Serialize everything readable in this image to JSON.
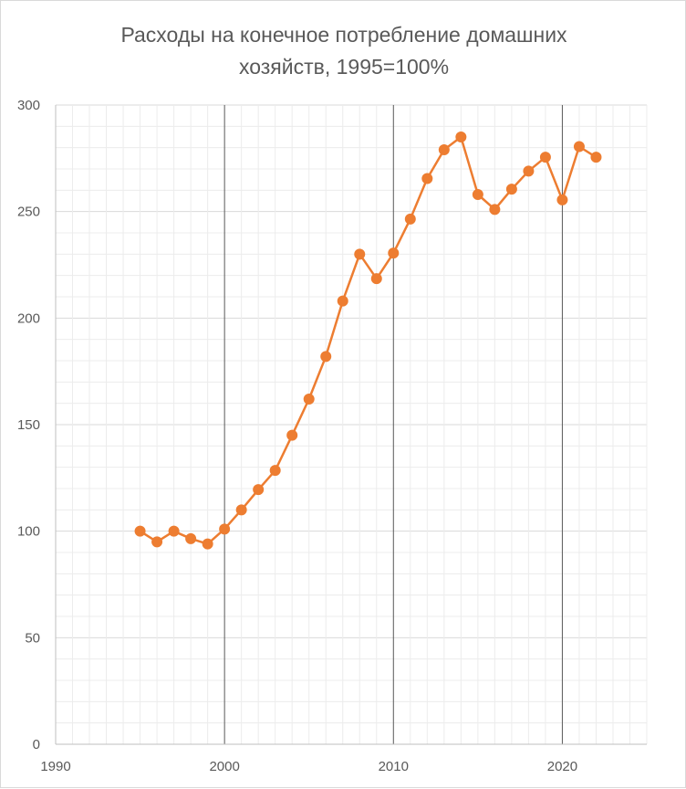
{
  "chart_data": {
    "type": "line",
    "title_lines": [
      "Расходы на конечное потребление домашних",
      "хозяйств, 1995=100%"
    ],
    "xlabel": "",
    "ylabel": "",
    "xlim": [
      1990,
      2025
    ],
    "ylim": [
      0,
      300
    ],
    "x_ticks": [
      1990,
      2000,
      2010,
      2020
    ],
    "y_ticks": [
      0,
      50,
      100,
      150,
      200,
      250,
      300
    ],
    "grid": "minor gridlines every 1 year and 10 units; major vertical lines at 2000, 2010, 2020",
    "series": [
      {
        "name": "Расходы на конечное потребление домашних хозяйств",
        "color": "#ed7d31",
        "x": [
          1995,
          1996,
          1997,
          1998,
          1999,
          2000,
          2001,
          2002,
          2003,
          2004,
          2005,
          2006,
          2007,
          2008,
          2009,
          2010,
          2011,
          2012,
          2013,
          2014,
          2015,
          2016,
          2017,
          2018,
          2019,
          2020,
          2021,
          2022
        ],
        "y": [
          100,
          95,
          100,
          96.5,
          94,
          101,
          110,
          119.5,
          128.5,
          145,
          162,
          182,
          208,
          230,
          218.5,
          230.5,
          246.5,
          265.5,
          279,
          285,
          258,
          251,
          260.5,
          269,
          275.5,
          255.5,
          280.5,
          275.5
        ]
      }
    ]
  }
}
